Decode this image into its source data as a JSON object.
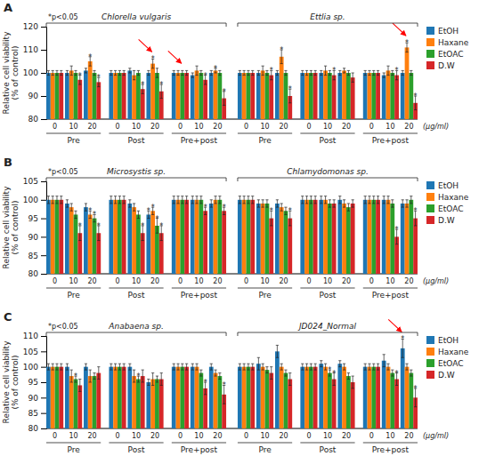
{
  "chart_data": [
    {
      "type": "bar",
      "title": "A",
      "annotations": [
        "*p<0.05"
      ],
      "star_label": "*",
      "xlabel": "(μg/ml)",
      "ylabel": "Relative cell viability\n(% of control)",
      "categories": [
        "0",
        "10",
        "20",
        "0",
        "10",
        "20",
        "0",
        "10",
        "20",
        "0",
        "10",
        "20",
        "0",
        "10",
        "20",
        "0",
        "10",
        "20"
      ],
      "category_groups": [
        "Pre",
        "Post",
        "Pre+post",
        "Pre",
        "Post",
        "Pre+post"
      ],
      "supergroups": [
        "Chlorella vulgaris",
        "Ettlia sp."
      ],
      "ylim": [
        80,
        120
      ],
      "yticks": [
        80,
        90,
        100,
        110,
        120
      ],
      "legend": "right",
      "series": [
        {
          "name": "EtOH",
          "values": [
            100,
            100,
            101,
            100,
            101,
            100,
            100,
            99,
            100,
            100,
            100,
            100,
            100,
            100,
            100,
            100,
            99,
            100
          ],
          "errors": [
            1,
            1,
            1,
            1,
            1,
            1,
            1,
            1,
            1,
            1,
            1,
            1,
            1,
            1,
            1,
            1,
            1,
            1
          ],
          "significant": [
            0,
            0,
            0,
            0,
            0,
            0,
            0,
            0,
            0,
            0,
            0,
            0,
            0,
            0,
            0,
            0,
            0,
            0
          ]
        },
        {
          "name": "Haxane",
          "values": [
            100,
            101,
            105,
            100,
            99,
            104,
            100,
            101,
            101,
            100,
            101,
            107,
            100,
            101,
            101,
            100,
            101,
            111
          ],
          "errors": [
            1,
            2,
            2,
            1,
            2,
            2,
            1,
            2,
            1,
            1,
            2,
            3,
            1,
            2,
            1,
            1,
            2,
            2
          ],
          "significant": [
            0,
            0,
            1,
            0,
            0,
            1,
            0,
            0,
            1,
            0,
            0,
            1,
            0,
            0,
            0,
            0,
            0,
            1
          ],
          "arrows": [
            5,
            17
          ]
        },
        {
          "name": "EtOAC",
          "values": [
            100,
            100,
            100,
            100,
            100,
            100,
            100,
            100,
            100,
            100,
            100,
            100,
            100,
            100,
            100,
            100,
            100,
            100
          ],
          "errors": [
            1,
            1,
            1,
            1,
            1,
            2,
            1,
            1,
            1,
            1,
            1,
            1,
            1,
            1,
            1,
            1,
            1,
            1
          ],
          "significant": [
            0,
            0,
            0,
            0,
            0,
            0,
            0,
            0,
            0,
            0,
            0,
            0,
            0,
            0,
            0,
            0,
            0,
            0
          ],
          "arrows": [
            6
          ]
        },
        {
          "name": "D.W",
          "values": [
            100,
            97,
            96,
            100,
            93,
            92,
            100,
            97,
            89,
            100,
            99,
            90,
            100,
            99,
            98,
            100,
            99,
            87
          ],
          "errors": [
            1,
            2,
            2,
            1,
            2,
            3,
            1,
            2,
            3,
            1,
            2,
            3,
            1,
            2,
            2,
            1,
            2,
            3
          ],
          "significant": [
            0,
            1,
            1,
            0,
            1,
            1,
            0,
            1,
            1,
            0,
            1,
            1,
            0,
            1,
            0,
            0,
            1,
            1
          ]
        }
      ]
    },
    {
      "type": "bar",
      "title": "B",
      "annotations": [
        "*p<0.05"
      ],
      "star_label": "*",
      "xlabel": "(μg/ml)",
      "ylabel": "Relative cell viability\n(% of control)",
      "categories": [
        "0",
        "10",
        "20",
        "0",
        "10",
        "20",
        "0",
        "10",
        "20",
        "0",
        "10",
        "20",
        "0",
        "10",
        "20",
        "0",
        "10",
        "20"
      ],
      "category_groups": [
        "Pre",
        "Post",
        "Pre+post",
        "Pre",
        "Post",
        "Pre+post"
      ],
      "supergroups": [
        "Microsystis sp.",
        "Chlamydomonas sp."
      ],
      "ylim": [
        80,
        105
      ],
      "yticks": [
        80,
        85,
        90,
        95,
        100,
        105
      ],
      "legend": "right",
      "series": [
        {
          "name": "EtOH",
          "values": [
            100,
            99,
            98,
            100,
            99,
            96,
            100,
            100,
            99,
            100,
            99,
            99,
            100,
            100,
            100,
            100,
            100,
            99
          ],
          "errors": [
            1,
            1,
            1,
            1,
            1,
            1,
            1,
            1,
            1,
            1,
            1,
            1,
            1,
            1,
            1,
            1,
            1,
            1
          ],
          "significant": [
            0,
            0,
            0,
            0,
            0,
            1,
            0,
            0,
            0,
            0,
            0,
            0,
            0,
            0,
            0,
            0,
            0,
            0
          ]
        },
        {
          "name": "Haxane",
          "values": [
            100,
            98,
            96,
            100,
            98,
            97,
            100,
            100,
            100,
            100,
            99,
            98,
            100,
            100,
            99,
            100,
            100,
            99
          ],
          "errors": [
            1,
            1,
            1,
            1,
            1,
            1,
            1,
            1,
            1,
            1,
            1,
            1,
            1,
            1,
            1,
            1,
            1,
            1
          ],
          "significant": [
            0,
            0,
            1,
            0,
            0,
            1,
            0,
            0,
            0,
            0,
            0,
            0,
            0,
            0,
            0,
            0,
            0,
            0
          ]
        },
        {
          "name": "EtOAC",
          "values": [
            100,
            96,
            95,
            100,
            96,
            93,
            100,
            100,
            100,
            100,
            99,
            97,
            100,
            99,
            98,
            100,
            99,
            100
          ],
          "errors": [
            1,
            1,
            1,
            1,
            1,
            2,
            1,
            1,
            1,
            1,
            1,
            1,
            1,
            1,
            1,
            1,
            1,
            1
          ],
          "significant": [
            0,
            0,
            1,
            0,
            0,
            1,
            0,
            0,
            0,
            0,
            0,
            0,
            0,
            0,
            0,
            0,
            0,
            0
          ]
        },
        {
          "name": "D.W",
          "values": [
            100,
            91,
            91,
            100,
            91,
            91,
            100,
            97,
            97,
            100,
            95,
            95,
            100,
            99,
            99,
            100,
            90,
            95
          ],
          "errors": [
            1,
            2,
            2,
            1,
            2,
            2,
            1,
            1,
            1,
            1,
            2,
            2,
            1,
            1,
            1,
            1,
            2,
            2
          ],
          "significant": [
            0,
            1,
            1,
            0,
            1,
            1,
            0,
            1,
            1,
            0,
            1,
            1,
            0,
            0,
            0,
            0,
            1,
            1
          ]
        }
      ]
    },
    {
      "type": "bar",
      "title": "C",
      "annotations": [
        "*p<0.05"
      ],
      "star_label": "*",
      "xlabel": "(μg/ml)",
      "ylabel": "Relative cell viability\n(% of control)",
      "categories": [
        "0",
        "10",
        "20",
        "0",
        "10",
        "20",
        "0",
        "10",
        "20",
        "0",
        "10",
        "20",
        "0",
        "10",
        "20",
        "0",
        "10",
        "20"
      ],
      "category_groups": [
        "Pre",
        "Post",
        "Pre+post",
        "Pre",
        "Post",
        "Pre+post"
      ],
      "supergroups": [
        "Anabaena sp.",
        "JD024_Normal"
      ],
      "ylim": [
        80,
        110
      ],
      "yticks": [
        80,
        85,
        90,
        95,
        100,
        105,
        110
      ],
      "legend": "right",
      "series": [
        {
          "name": "EtOH",
          "values": [
            100,
            100,
            100,
            100,
            100,
            95,
            100,
            100,
            100,
            100,
            101,
            105,
            100,
            101,
            101,
            100,
            102,
            106
          ],
          "errors": [
            1,
            1,
            1,
            1,
            1,
            1,
            1,
            1,
            1,
            1,
            2,
            2,
            1,
            1,
            1,
            1,
            2,
            3
          ],
          "significant": [
            0,
            0,
            0,
            0,
            0,
            0,
            0,
            0,
            0,
            0,
            0,
            0,
            0,
            0,
            0,
            0,
            0,
            1
          ],
          "arrows": [
            17
          ]
        },
        {
          "name": "Haxane",
          "values": [
            100,
            97,
            97,
            100,
            97,
            96,
            100,
            100,
            98,
            100,
            100,
            100,
            100,
            100,
            100,
            100,
            100,
            100
          ],
          "errors": [
            1,
            2,
            2,
            1,
            2,
            2,
            1,
            1,
            1,
            1,
            1,
            1,
            1,
            1,
            1,
            1,
            1,
            1
          ],
          "significant": [
            0,
            0,
            0,
            0,
            0,
            0,
            0,
            0,
            0,
            0,
            0,
            0,
            0,
            0,
            0,
            0,
            0,
            0
          ]
        },
        {
          "name": "EtOAC",
          "values": [
            100,
            96,
            97,
            100,
            96,
            96,
            100,
            98,
            97,
            100,
            99,
            98,
            100,
            98,
            97,
            100,
            98,
            98
          ],
          "errors": [
            1,
            1,
            1,
            1,
            1,
            1,
            1,
            1,
            1,
            1,
            1,
            1,
            1,
            1,
            1,
            1,
            1,
            1
          ],
          "significant": [
            0,
            1,
            0,
            0,
            1,
            0,
            0,
            0,
            0,
            0,
            0,
            0,
            0,
            1,
            0,
            0,
            0,
            0
          ]
        },
        {
          "name": "D.W",
          "values": [
            100,
            94,
            98,
            100,
            97,
            96,
            100,
            93,
            91,
            100,
            98,
            96,
            100,
            96,
            95,
            100,
            96,
            90
          ],
          "errors": [
            1,
            2,
            2,
            1,
            2,
            2,
            1,
            2,
            3,
            1,
            2,
            2,
            1,
            2,
            2,
            1,
            2,
            3
          ],
          "significant": [
            0,
            0,
            0,
            0,
            0,
            0,
            0,
            1,
            1,
            0,
            0,
            0,
            0,
            1,
            0,
            0,
            1,
            1
          ]
        }
      ]
    }
  ]
}
